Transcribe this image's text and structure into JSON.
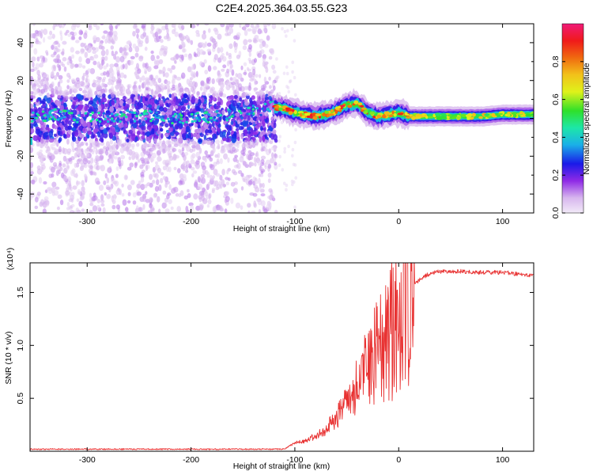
{
  "title": "C2E4.2025.364.03.55.G23",
  "chart_data": [
    {
      "type": "heatmap",
      "xlabel": "Height of straight line (km)",
      "ylabel": "Frequency (Hz)",
      "xlim": [
        -355,
        130
      ],
      "ylim": [
        -50,
        50
      ],
      "x_ticks": [
        -300,
        -200,
        -100,
        0,
        100
      ],
      "y_ticks": [
        -40,
        -20,
        0,
        20,
        40
      ],
      "colorbar": {
        "label": "Normalized spectral amplitude",
        "range": [
          0,
          1
        ],
        "ticks": [
          "0.0",
          "0.2",
          "0.4",
          "0.6",
          "0.8"
        ],
        "colors": [
          "#f2eaf8",
          "#d7b6ee",
          "#8f2ae6",
          "#1a1ae8",
          "#1ab0e8",
          "#1de7a8",
          "#2fe02a",
          "#dff21a",
          "#f2c21a",
          "#f06a10",
          "#f01a1a",
          "#f01a78"
        ]
      },
      "ridge": {
        "x": [
          -355,
          -330,
          -300,
          -270,
          -240,
          -200,
          -160,
          -120,
          -110,
          -100,
          -90,
          -80,
          -70,
          -60,
          -50,
          -40,
          -30,
          -20,
          -10,
          0,
          10,
          20,
          40,
          60,
          80,
          100,
          130
        ],
        "freq": [
          1,
          2,
          0,
          1,
          1,
          0,
          2,
          6,
          5,
          3,
          2,
          1,
          2,
          4,
          7,
          8,
          3,
          1,
          2,
          3,
          1,
          1,
          1,
          1,
          1,
          2,
          2
        ]
      }
    },
    {
      "type": "line",
      "xlabel": "Height of straight line (km)",
      "ylabel": "SNR (10 * v/v)",
      "y_multiplier": "(x10⁴)",
      "xlim": [
        -355,
        130
      ],
      "ylim": [
        0,
        1.78
      ],
      "x_ticks": [
        -300,
        -200,
        -100,
        0,
        100
      ],
      "y_ticks": [
        "0.5",
        "1.0",
        "1.5"
      ],
      "line_color": "#e83232",
      "series": [
        {
          "x": [
            -355,
            -300,
            -200,
            -110,
            -100,
            -90,
            -80,
            -70,
            -60,
            -50,
            -40,
            -30,
            -20,
            -10,
            0,
            10,
            20,
            30,
            40,
            50,
            60,
            70,
            80,
            90,
            100,
            110,
            120,
            130
          ],
          "values": [
            0.02,
            0.02,
            0.02,
            0.02,
            0.08,
            0.1,
            0.15,
            0.22,
            0.32,
            0.5,
            0.65,
            0.85,
            1.05,
            1.15,
            1.35,
            1.52,
            1.62,
            1.68,
            1.7,
            1.7,
            1.7,
            1.69,
            1.69,
            1.69,
            1.69,
            1.68,
            1.67,
            1.66
          ]
        }
      ]
    }
  ]
}
